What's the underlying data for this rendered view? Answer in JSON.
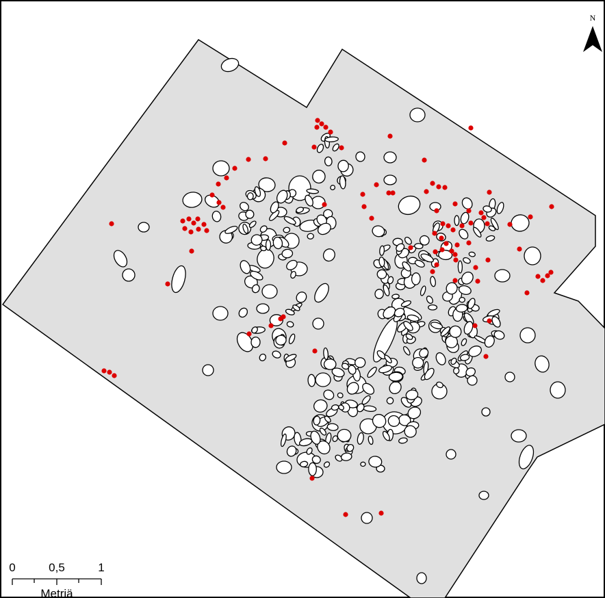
{
  "map": {
    "north_label": "N",
    "scale_bar": {
      "ticks": [
        "0",
        "0,5",
        "1"
      ],
      "unit": "Metriä"
    },
    "colors": {
      "area_fill": "#e0e0e0",
      "stone_fill": "#ffffff",
      "outline": "#000000",
      "find_point": "#dd0000"
    },
    "icons": [
      "north-arrow-icon"
    ]
  }
}
